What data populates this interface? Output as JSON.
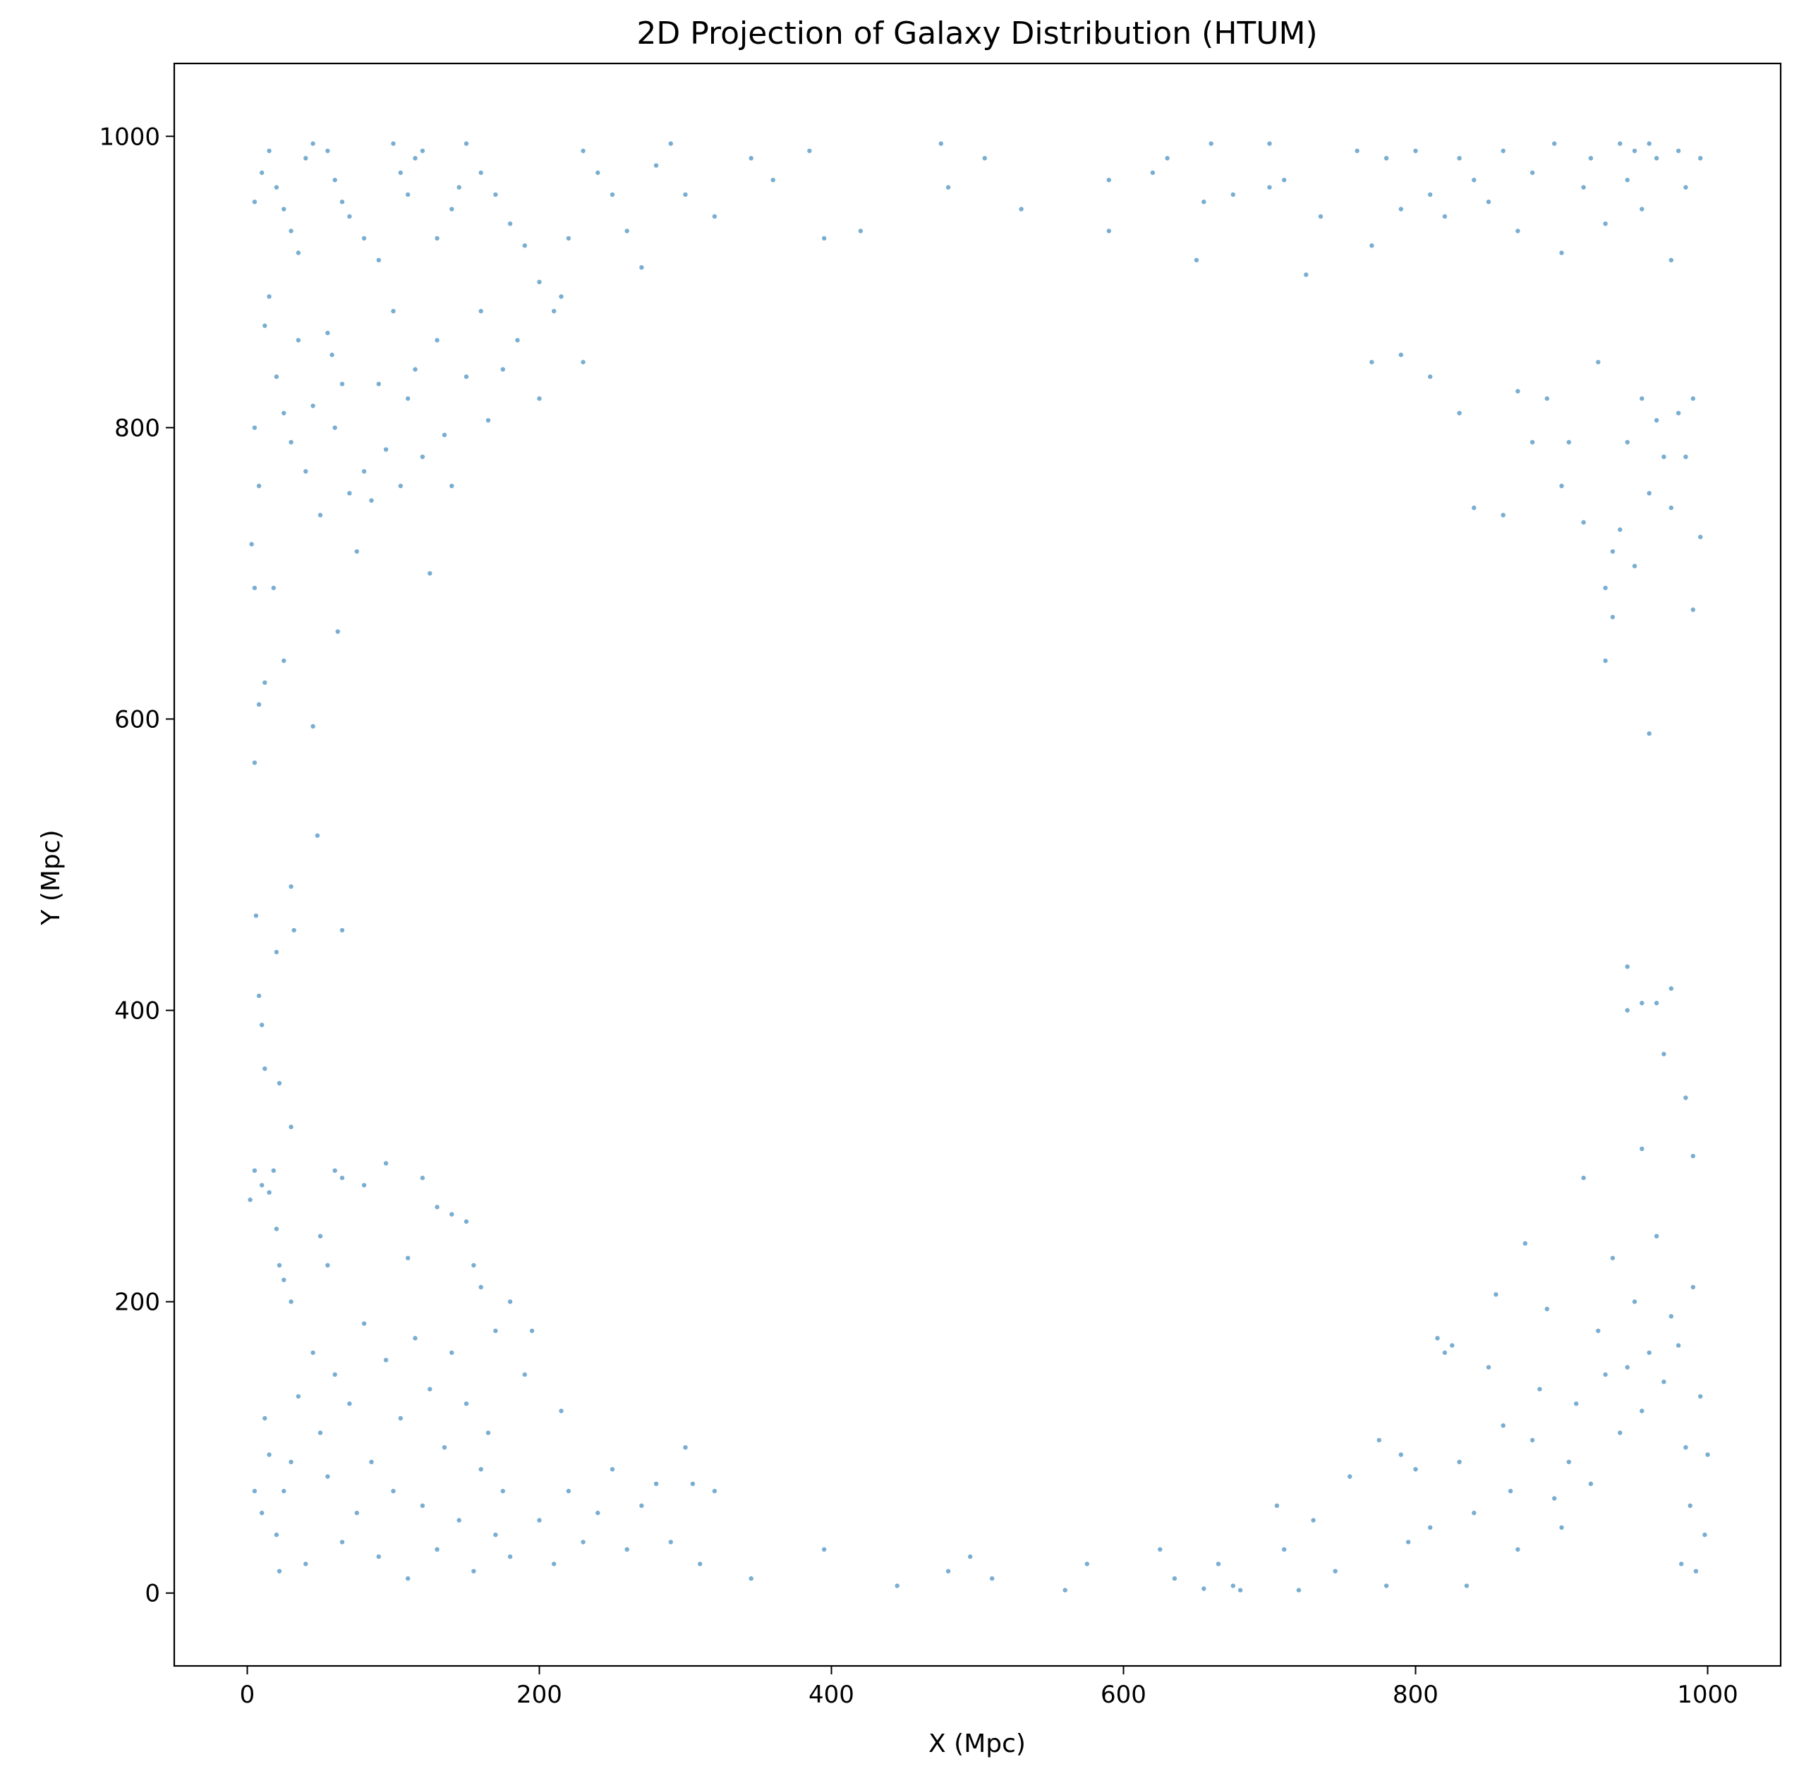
{
  "chart_data": {
    "type": "scatter",
    "title": "2D Projection of Galaxy Distribution (HTUM)",
    "xlabel": "X (Mpc)",
    "ylabel": "Y (Mpc)",
    "xlim": [
      -50,
      1050
    ],
    "ylim": [
      -50,
      1050
    ],
    "xticks": [
      0,
      200,
      400,
      600,
      800,
      1000
    ],
    "yticks": [
      0,
      200,
      400,
      600,
      800,
      1000
    ],
    "xtick_labels": [
      "0",
      "200",
      "400",
      "600",
      "800",
      "1000"
    ],
    "ytick_labels": [
      "0",
      "200",
      "400",
      "600",
      "800",
      "1000"
    ],
    "grid": false,
    "legend": false,
    "marker_color": "#1f77b4",
    "marker_alpha": 0.6,
    "points": [
      [
        5,
        955
      ],
      [
        10,
        975
      ],
      [
        15,
        990
      ],
      [
        20,
        965
      ],
      [
        25,
        950
      ],
      [
        30,
        935
      ],
      [
        35,
        920
      ],
      [
        40,
        985
      ],
      [
        45,
        995
      ],
      [
        55,
        990
      ],
      [
        60,
        970
      ],
      [
        65,
        955
      ],
      [
        70,
        945
      ],
      [
        80,
        930
      ],
      [
        90,
        915
      ],
      [
        100,
        995
      ],
      [
        105,
        975
      ],
      [
        110,
        960
      ],
      [
        115,
        985
      ],
      [
        120,
        990
      ],
      [
        130,
        930
      ],
      [
        140,
        950
      ],
      [
        145,
        965
      ],
      [
        150,
        995
      ],
      [
        160,
        975
      ],
      [
        170,
        960
      ],
      [
        180,
        940
      ],
      [
        190,
        925
      ],
      [
        200,
        900
      ],
      [
        210,
        880
      ],
      [
        220,
        930
      ],
      [
        230,
        990
      ],
      [
        240,
        975
      ],
      [
        250,
        960
      ],
      [
        260,
        935
      ],
      [
        270,
        910
      ],
      [
        280,
        980
      ],
      [
        290,
        995
      ],
      [
        300,
        960
      ],
      [
        320,
        945
      ],
      [
        345,
        985
      ],
      [
        360,
        970
      ],
      [
        385,
        990
      ],
      [
        395,
        930
      ],
      [
        420,
        935
      ],
      [
        475,
        995
      ],
      [
        480,
        965
      ],
      [
        505,
        985
      ],
      [
        530,
        950
      ],
      [
        590,
        970
      ],
      [
        590,
        935
      ],
      [
        620,
        975
      ],
      [
        630,
        985
      ],
      [
        650,
        915
      ],
      [
        655,
        955
      ],
      [
        660,
        995
      ],
      [
        675,
        960
      ],
      [
        700,
        995
      ],
      [
        700,
        965
      ],
      [
        710,
        970
      ],
      [
        725,
        905
      ],
      [
        735,
        945
      ],
      [
        760,
        990
      ],
      [
        770,
        925
      ],
      [
        780,
        985
      ],
      [
        790,
        950
      ],
      [
        800,
        990
      ],
      [
        810,
        960
      ],
      [
        820,
        945
      ],
      [
        830,
        985
      ],
      [
        840,
        970
      ],
      [
        850,
        955
      ],
      [
        860,
        990
      ],
      [
        870,
        935
      ],
      [
        880,
        975
      ],
      [
        895,
        995
      ],
      [
        900,
        920
      ],
      [
        915,
        965
      ],
      [
        920,
        985
      ],
      [
        930,
        940
      ],
      [
        940,
        995
      ],
      [
        945,
        970
      ],
      [
        950,
        990
      ],
      [
        955,
        950
      ],
      [
        960,
        995
      ],
      [
        965,
        985
      ],
      [
        975,
        915
      ],
      [
        980,
        990
      ],
      [
        985,
        965
      ],
      [
        995,
        985
      ],
      [
        5,
        800
      ],
      [
        8,
        760
      ],
      [
        12,
        870
      ],
      [
        15,
        890
      ],
      [
        20,
        835
      ],
      [
        25,
        810
      ],
      [
        30,
        790
      ],
      [
        35,
        860
      ],
      [
        40,
        770
      ],
      [
        45,
        815
      ],
      [
        50,
        740
      ],
      [
        55,
        865
      ],
      [
        58,
        850
      ],
      [
        60,
        800
      ],
      [
        65,
        830
      ],
      [
        70,
        755
      ],
      [
        75,
        715
      ],
      [
        80,
        770
      ],
      [
        85,
        750
      ],
      [
        90,
        830
      ],
      [
        95,
        785
      ],
      [
        100,
        880
      ],
      [
        105,
        760
      ],
      [
        110,
        820
      ],
      [
        115,
        840
      ],
      [
        120,
        780
      ],
      [
        125,
        700
      ],
      [
        130,
        860
      ],
      [
        135,
        795
      ],
      [
        140,
        760
      ],
      [
        150,
        835
      ],
      [
        160,
        880
      ],
      [
        165,
        805
      ],
      [
        175,
        840
      ],
      [
        185,
        860
      ],
      [
        200,
        820
      ],
      [
        215,
        890
      ],
      [
        230,
        845
      ],
      [
        3,
        720
      ],
      [
        5,
        690
      ],
      [
        8,
        610
      ],
      [
        12,
        625
      ],
      [
        18,
        690
      ],
      [
        25,
        640
      ],
      [
        45,
        595
      ],
      [
        48,
        520
      ],
      [
        62,
        660
      ],
      [
        5,
        570
      ],
      [
        6,
        465
      ],
      [
        8,
        410
      ],
      [
        10,
        390
      ],
      [
        12,
        360
      ],
      [
        20,
        440
      ],
      [
        22,
        350
      ],
      [
        30,
        485
      ],
      [
        32,
        455
      ],
      [
        65,
        455
      ],
      [
        30,
        320
      ],
      [
        770,
        845
      ],
      [
        790,
        850
      ],
      [
        810,
        835
      ],
      [
        830,
        810
      ],
      [
        840,
        745
      ],
      [
        860,
        740
      ],
      [
        870,
        825
      ],
      [
        880,
        790
      ],
      [
        890,
        820
      ],
      [
        900,
        760
      ],
      [
        905,
        790
      ],
      [
        915,
        735
      ],
      [
        925,
        845
      ],
      [
        930,
        690
      ],
      [
        935,
        715
      ],
      [
        940,
        730
      ],
      [
        945,
        790
      ],
      [
        950,
        705
      ],
      [
        955,
        820
      ],
      [
        960,
        755
      ],
      [
        965,
        805
      ],
      [
        970,
        780
      ],
      [
        975,
        745
      ],
      [
        980,
        810
      ],
      [
        985,
        780
      ],
      [
        990,
        820
      ],
      [
        995,
        725
      ],
      [
        990,
        675
      ],
      [
        960,
        590
      ],
      [
        930,
        640
      ],
      [
        935,
        670
      ],
      [
        945,
        430
      ],
      [
        955,
        405
      ],
      [
        965,
        405
      ],
      [
        975,
        415
      ],
      [
        945,
        400
      ],
      [
        970,
        370
      ],
      [
        985,
        340
      ],
      [
        990,
        300
      ],
      [
        955,
        305
      ],
      [
        2,
        270
      ],
      [
        5,
        290
      ],
      [
        10,
        280
      ],
      [
        15,
        275
      ],
      [
        18,
        290
      ],
      [
        20,
        250
      ],
      [
        22,
        225
      ],
      [
        25,
        215
      ],
      [
        30,
        200
      ],
      [
        50,
        245
      ],
      [
        55,
        225
      ],
      [
        60,
        290
      ],
      [
        65,
        285
      ],
      [
        80,
        280
      ],
      [
        95,
        295
      ],
      [
        110,
        230
      ],
      [
        120,
        285
      ],
      [
        130,
        265
      ],
      [
        140,
        260
      ],
      [
        150,
        255
      ],
      [
        155,
        225
      ],
      [
        160,
        210
      ],
      [
        170,
        180
      ],
      [
        180,
        200
      ],
      [
        195,
        180
      ],
      [
        215,
        125
      ],
      [
        5,
        70
      ],
      [
        10,
        55
      ],
      [
        12,
        120
      ],
      [
        15,
        95
      ],
      [
        20,
        40
      ],
      [
        22,
        15
      ],
      [
        25,
        70
      ],
      [
        30,
        90
      ],
      [
        35,
        135
      ],
      [
        40,
        20
      ],
      [
        45,
        165
      ],
      [
        50,
        110
      ],
      [
        55,
        80
      ],
      [
        60,
        150
      ],
      [
        65,
        35
      ],
      [
        70,
        130
      ],
      [
        75,
        55
      ],
      [
        80,
        185
      ],
      [
        85,
        90
      ],
      [
        90,
        25
      ],
      [
        95,
        160
      ],
      [
        100,
        70
      ],
      [
        105,
        120
      ],
      [
        110,
        10
      ],
      [
        115,
        175
      ],
      [
        120,
        60
      ],
      [
        125,
        140
      ],
      [
        130,
        30
      ],
      [
        135,
        100
      ],
      [
        140,
        165
      ],
      [
        145,
        50
      ],
      [
        150,
        130
      ],
      [
        155,
        15
      ],
      [
        160,
        85
      ],
      [
        165,
        110
      ],
      [
        170,
        40
      ],
      [
        175,
        70
      ],
      [
        180,
        25
      ],
      [
        190,
        150
      ],
      [
        200,
        50
      ],
      [
        210,
        20
      ],
      [
        220,
        70
      ],
      [
        230,
        35
      ],
      [
        240,
        55
      ],
      [
        250,
        85
      ],
      [
        260,
        30
      ],
      [
        270,
        60
      ],
      [
        280,
        75
      ],
      [
        290,
        35
      ],
      [
        300,
        100
      ],
      [
        305,
        75
      ],
      [
        310,
        20
      ],
      [
        320,
        70
      ],
      [
        345,
        10
      ],
      [
        395,
        30
      ],
      [
        445,
        5
      ],
      [
        480,
        15
      ],
      [
        495,
        25
      ],
      [
        510,
        10
      ],
      [
        560,
        2
      ],
      [
        575,
        20
      ],
      [
        625,
        30
      ],
      [
        635,
        10
      ],
      [
        655,
        3
      ],
      [
        665,
        20
      ],
      [
        675,
        5
      ],
      [
        680,
        2
      ],
      [
        705,
        60
      ],
      [
        710,
        30
      ],
      [
        720,
        2
      ],
      [
        730,
        50
      ],
      [
        745,
        15
      ],
      [
        755,
        80
      ],
      [
        775,
        105
      ],
      [
        780,
        5
      ],
      [
        790,
        95
      ],
      [
        795,
        35
      ],
      [
        800,
        85
      ],
      [
        810,
        45
      ],
      [
        815,
        175
      ],
      [
        820,
        165
      ],
      [
        825,
        170
      ],
      [
        830,
        90
      ],
      [
        835,
        5
      ],
      [
        840,
        55
      ],
      [
        850,
        155
      ],
      [
        855,
        205
      ],
      [
        860,
        115
      ],
      [
        865,
        70
      ],
      [
        870,
        30
      ],
      [
        875,
        240
      ],
      [
        880,
        105
      ],
      [
        885,
        140
      ],
      [
        890,
        195
      ],
      [
        895,
        65
      ],
      [
        900,
        45
      ],
      [
        905,
        90
      ],
      [
        910,
        130
      ],
      [
        915,
        285
      ],
      [
        920,
        75
      ],
      [
        925,
        180
      ],
      [
        930,
        150
      ],
      [
        935,
        230
      ],
      [
        940,
        110
      ],
      [
        945,
        155
      ],
      [
        950,
        200
      ],
      [
        955,
        125
      ],
      [
        960,
        165
      ],
      [
        965,
        245
      ],
      [
        970,
        145
      ],
      [
        975,
        190
      ],
      [
        980,
        170
      ],
      [
        985,
        100
      ],
      [
        990,
        210
      ],
      [
        995,
        135
      ],
      [
        1000,
        95
      ],
      [
        998,
        40
      ],
      [
        992,
        15
      ],
      [
        988,
        60
      ],
      [
        982,
        20
      ]
    ]
  }
}
